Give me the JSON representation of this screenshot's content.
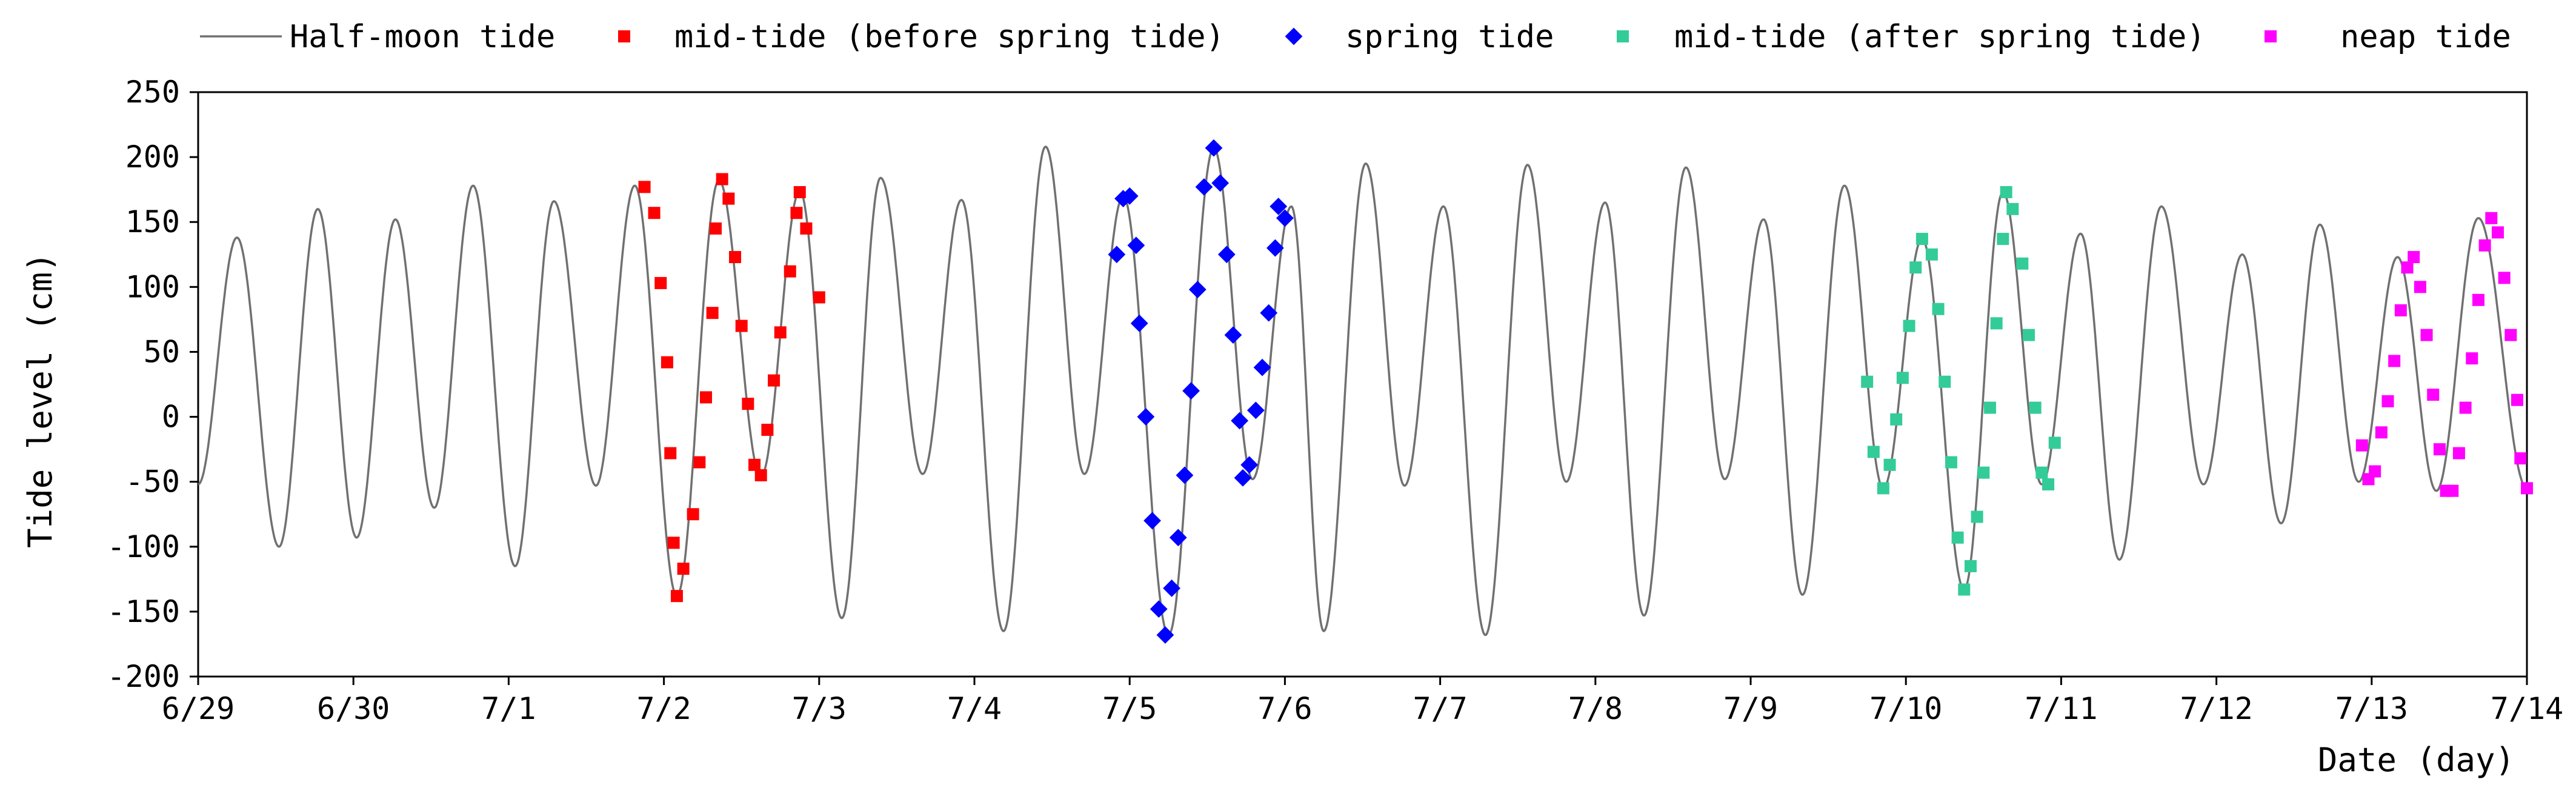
{
  "chart_data": {
    "type": "line",
    "title": "",
    "xlabel": "Date (day)",
    "ylabel": "Tide level (cm)",
    "ylim": [
      -200,
      250
    ],
    "yticks": [
      -200,
      -150,
      -100,
      -50,
      0,
      50,
      100,
      150,
      200,
      250
    ],
    "xlim": [
      "6/29",
      "7/14"
    ],
    "x_tick_labels": [
      "6/29",
      "6/30",
      "7/1",
      "7/2",
      "7/3",
      "7/4",
      "7/5",
      "7/6",
      "7/7",
      "7/8",
      "7/9",
      "7/10",
      "7/11",
      "7/12",
      "7/13",
      "7/14"
    ],
    "grid": false,
    "legend_position": "top",
    "series": [
      {
        "name": "Half-moon tide",
        "kind": "line",
        "color": "#707070",
        "extrema": [
          [
            "6/29 00:00",
            -52
          ],
          [
            "6/29 06:00",
            138
          ],
          [
            "6/29 12:30",
            -100
          ],
          [
            "6/29 18:30",
            160
          ],
          [
            "6/30 00:30",
            -93
          ],
          [
            "6/30 06:30",
            152
          ],
          [
            "6/30 12:30",
            -70
          ],
          [
            "6/30 18:30",
            178
          ],
          [
            "7/1 01:00",
            -115
          ],
          [
            "7/1 07:00",
            166
          ],
          [
            "7/1 13:30",
            -53
          ],
          [
            "7/1 19:30",
            178
          ],
          [
            "7/2 02:00",
            -138
          ],
          [
            "7/2 08:30",
            182
          ],
          [
            "7/2 15:00",
            -46
          ],
          [
            "7/2 21:00",
            174
          ],
          [
            "7/3 03:30",
            -155
          ],
          [
            "7/3 09:30",
            184
          ],
          [
            "7/3 16:00",
            -44
          ],
          [
            "7/3 22:00",
            167
          ],
          [
            "7/4 04:30",
            -165
          ],
          [
            "7/4 11:00",
            208
          ],
          [
            "7/4 17:00",
            -44
          ],
          [
            "7/4 23:00",
            170
          ],
          [
            "7/5 06:00",
            -168
          ],
          [
            "7/5 13:00",
            207
          ],
          [
            "7/5 19:00",
            -48
          ],
          [
            "7/6 01:00",
            162
          ],
          [
            "7/6 06:00",
            -165
          ],
          [
            "7/6 12:30",
            195
          ],
          [
            "7/6 18:30",
            -53
          ],
          [
            "7/7 00:30",
            162
          ],
          [
            "7/7 07:00",
            -168
          ],
          [
            "7/7 13:30",
            194
          ],
          [
            "7/7 19:30",
            -50
          ],
          [
            "7/8 01:30",
            165
          ],
          [
            "7/8 07:30",
            -153
          ],
          [
            "7/8 14:00",
            192
          ],
          [
            "7/8 20:00",
            -48
          ],
          [
            "7/9 02:00",
            152
          ],
          [
            "7/9 08:00",
            -137
          ],
          [
            "7/9 14:30",
            178
          ],
          [
            "7/9 20:30",
            -55
          ],
          [
            "7/10 02:30",
            137
          ],
          [
            "7/10 09:00",
            -133
          ],
          [
            "7/10 15:00",
            173
          ],
          [
            "7/10 21:00",
            -52
          ],
          [
            "7/11 03:00",
            141
          ],
          [
            "7/11 09:00",
            -110
          ],
          [
            "7/11 15:30",
            162
          ],
          [
            "7/11 22:00",
            -52
          ],
          [
            "7/12 04:00",
            125
          ],
          [
            "7/12 10:00",
            -82
          ],
          [
            "7/12 16:00",
            148
          ],
          [
            "7/12 22:00",
            -50
          ],
          [
            "7/13 04:00",
            123
          ],
          [
            "7/13 10:00",
            -57
          ],
          [
            "7/13 16:30",
            153
          ],
          [
            "7/14 00:00",
            -55
          ]
        ]
      },
      {
        "name": "mid-tide (before spring tide)",
        "kind": "scatter",
        "marker": "square",
        "color": "#ff0000",
        "points": [
          [
            "7/1 21:00",
            177
          ],
          [
            "7/1 22:30",
            157
          ],
          [
            "7/1 23:30",
            103
          ],
          [
            "7/2 00:30",
            42
          ],
          [
            "7/2 01:00",
            -28
          ],
          [
            "7/2 01:30",
            -97
          ],
          [
            "7/2 02:00",
            -138
          ],
          [
            "7/2 03:00",
            -117
          ],
          [
            "7/2 04:30",
            -75
          ],
          [
            "7/2 05:30",
            -35
          ],
          [
            "7/2 06:30",
            15
          ],
          [
            "7/2 07:30",
            80
          ],
          [
            "7/2 08:00",
            145
          ],
          [
            "7/2 09:00",
            183
          ],
          [
            "7/2 10:00",
            168
          ],
          [
            "7/2 11:00",
            123
          ],
          [
            "7/2 12:00",
            70
          ],
          [
            "7/2 13:00",
            10
          ],
          [
            "7/2 14:00",
            -37
          ],
          [
            "7/2 15:00",
            -45
          ],
          [
            "7/2 16:00",
            -10
          ],
          [
            "7/2 17:00",
            28
          ],
          [
            "7/2 18:00",
            65
          ],
          [
            "7/2 19:30",
            112
          ],
          [
            "7/2 20:30",
            157
          ],
          [
            "7/2 21:00",
            173
          ],
          [
            "7/2 22:00",
            145
          ],
          [
            "7/3 00:00",
            92
          ]
        ]
      },
      {
        "name": "spring tide",
        "kind": "scatter",
        "marker": "diamond",
        "color": "#0000ff",
        "points": [
          [
            "7/4 22:00",
            125
          ],
          [
            "7/4 23:00",
            168
          ],
          [
            "7/5 00:00",
            170
          ],
          [
            "7/5 01:00",
            132
          ],
          [
            "7/5 01:30",
            72
          ],
          [
            "7/5 02:30",
            0
          ],
          [
            "7/5 03:30",
            -80
          ],
          [
            "7/5 04:30",
            -148
          ],
          [
            "7/5 05:30",
            -168
          ],
          [
            "7/5 06:30",
            -132
          ],
          [
            "7/5 07:30",
            -93
          ],
          [
            "7/5 08:30",
            -45
          ],
          [
            "7/5 09:30",
            20
          ],
          [
            "7/5 10:30",
            98
          ],
          [
            "7/5 11:30",
            177
          ],
          [
            "7/5 13:00",
            207
          ],
          [
            "7/5 14:00",
            180
          ],
          [
            "7/5 15:00",
            125
          ],
          [
            "7/5 16:00",
            63
          ],
          [
            "7/5 17:00",
            -3
          ],
          [
            "7/5 17:30",
            -47
          ],
          [
            "7/5 18:30",
            -37
          ],
          [
            "7/5 19:30",
            5
          ],
          [
            "7/5 20:30",
            38
          ],
          [
            "7/5 21:30",
            80
          ],
          [
            "7/5 22:30",
            130
          ],
          [
            "7/5 23:00",
            162
          ],
          [
            "7/6 00:00",
            153
          ]
        ]
      },
      {
        "name": "mid-tide (after spring tide)",
        "kind": "scatter",
        "marker": "square",
        "color": "#33cc99",
        "points": [
          [
            "7/9 18:00",
            27
          ],
          [
            "7/9 19:00",
            -27
          ],
          [
            "7/9 20:30",
            -55
          ],
          [
            "7/9 21:30",
            -37
          ],
          [
            "7/9 22:30",
            -2
          ],
          [
            "7/9 23:30",
            30
          ],
          [
            "7/10 00:30",
            70
          ],
          [
            "7/10 01:30",
            115
          ],
          [
            "7/10 02:30",
            137
          ],
          [
            "7/10 04:00",
            125
          ],
          [
            "7/10 05:00",
            83
          ],
          [
            "7/10 06:00",
            27
          ],
          [
            "7/10 07:00",
            -35
          ],
          [
            "7/10 08:00",
            -93
          ],
          [
            "7/10 09:00",
            -133
          ],
          [
            "7/10 10:00",
            -115
          ],
          [
            "7/10 11:00",
            -77
          ],
          [
            "7/10 12:00",
            -43
          ],
          [
            "7/10 13:00",
            7
          ],
          [
            "7/10 14:00",
            72
          ],
          [
            "7/10 15:00",
            137
          ],
          [
            "7/10 15:30",
            173
          ],
          [
            "7/10 16:30",
            160
          ],
          [
            "7/10 18:00",
            118
          ],
          [
            "7/10 19:00",
            63
          ],
          [
            "7/10 20:00",
            7
          ],
          [
            "7/10 21:00",
            -43
          ],
          [
            "7/10 22:00",
            -52
          ],
          [
            "7/10 23:00",
            -20
          ]
        ]
      },
      {
        "name": "neap tide",
        "kind": "scatter",
        "marker": "square",
        "color": "#ff00ff",
        "points": [
          [
            "7/12 22:30",
            -22
          ],
          [
            "7/12 23:30",
            -48
          ],
          [
            "7/13 00:30",
            -42
          ],
          [
            "7/13 01:30",
            -12
          ],
          [
            "7/13 02:30",
            12
          ],
          [
            "7/13 03:30",
            43
          ],
          [
            "7/13 04:30",
            82
          ],
          [
            "7/13 05:30",
            115
          ],
          [
            "7/13 06:30",
            123
          ],
          [
            "7/13 07:30",
            100
          ],
          [
            "7/13 08:30",
            63
          ],
          [
            "7/13 09:30",
            17
          ],
          [
            "7/13 10:30",
            -25
          ],
          [
            "7/13 11:30",
            -57
          ],
          [
            "7/13 12:30",
            -57
          ],
          [
            "7/13 13:30",
            -28
          ],
          [
            "7/13 14:30",
            7
          ],
          [
            "7/13 15:30",
            45
          ],
          [
            "7/13 16:30",
            90
          ],
          [
            "7/13 17:30",
            132
          ],
          [
            "7/13 18:30",
            153
          ],
          [
            "7/13 19:30",
            142
          ],
          [
            "7/13 20:30",
            107
          ],
          [
            "7/13 21:30",
            63
          ],
          [
            "7/13 22:30",
            13
          ],
          [
            "7/13 23:00",
            -32
          ],
          [
            "7/14 00:00",
            -55
          ]
        ]
      }
    ]
  }
}
